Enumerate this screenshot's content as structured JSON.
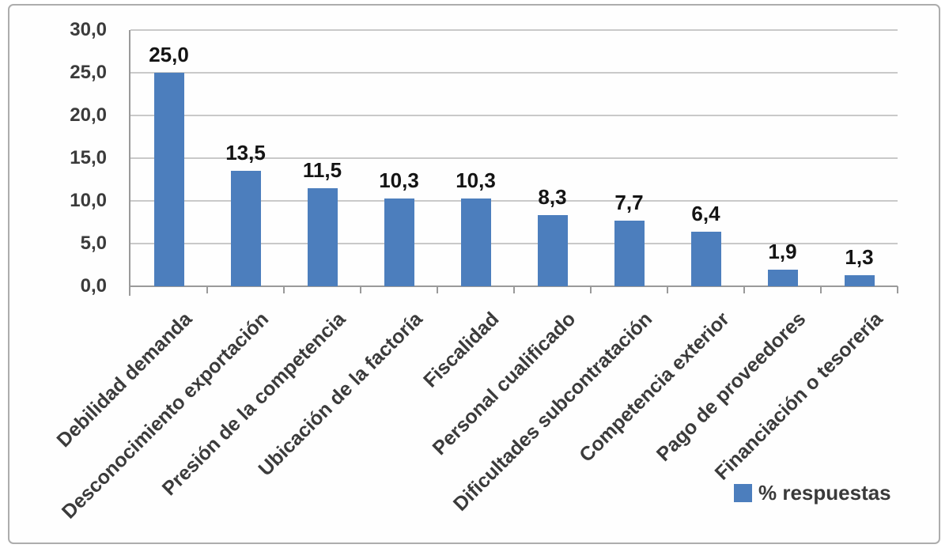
{
  "colors": {
    "bar": "#4c7ebd",
    "grid": "#c9c9c9",
    "axis": "#9a9a9a",
    "frame_border": "#adadad",
    "text": "#3b3b3b",
    "value_label": "#141414"
  },
  "chart_data": {
    "type": "bar",
    "title": "",
    "categories": [
      "Debilidad demanda",
      "Desconocimiento exportación",
      "Presión de la competencia",
      "Ubicación de la factoría",
      "Fiscalidad",
      "Personal cualificado",
      "Dificultades subcontratación",
      "Competencia exterior",
      "Pago de proveedores",
      "Financiación o tesorería"
    ],
    "values": [
      25.0,
      13.5,
      11.5,
      10.3,
      10.3,
      8.3,
      7.7,
      6.4,
      1.9,
      1.3
    ],
    "value_labels": [
      "25,0",
      "13,5",
      "11,5",
      "10,3",
      "10,3",
      "8,3",
      "7,7",
      "6,4",
      "1,9",
      "1,3"
    ],
    "y_ticks": [
      "0,0",
      "5,0",
      "10,0",
      "15,0",
      "20,0",
      "25,0",
      "30,0"
    ],
    "y_tick_values": [
      0,
      5,
      10,
      15,
      20,
      25,
      30
    ],
    "ylim": [
      0,
      30
    ],
    "xlabel": "",
    "ylabel": "",
    "grid": true,
    "bar_color": "#4c7ebd",
    "legend": {
      "label": "% respuestas",
      "position": "bottom-right",
      "swatch_color": "#4c7ebd"
    }
  }
}
